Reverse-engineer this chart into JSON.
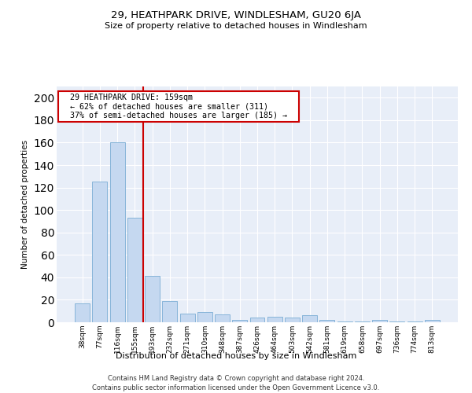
{
  "title": "29, HEATHPARK DRIVE, WINDLESHAM, GU20 6JA",
  "subtitle": "Size of property relative to detached houses in Windlesham",
  "xlabel": "Distribution of detached houses by size in Windlesham",
  "ylabel": "Number of detached properties",
  "categories": [
    "38sqm",
    "77sqm",
    "116sqm",
    "155sqm",
    "193sqm",
    "232sqm",
    "271sqm",
    "310sqm",
    "348sqm",
    "387sqm",
    "426sqm",
    "464sqm",
    "503sqm",
    "542sqm",
    "581sqm",
    "619sqm",
    "658sqm",
    "697sqm",
    "736sqm",
    "774sqm",
    "813sqm"
  ],
  "values": [
    17,
    125,
    160,
    93,
    41,
    19,
    8,
    9,
    7,
    2,
    4,
    5,
    4,
    6,
    2,
    1,
    1,
    2,
    1,
    1,
    2
  ],
  "bar_color": "#c5d8f0",
  "bar_edge_color": "#7aadd4",
  "red_line_x": 3.5,
  "red_line_color": "#cc0000",
  "annotation_text_line1": "29 HEATHPARK DRIVE: 159sqm",
  "annotation_text_line2": "← 62% of detached houses are smaller (311)",
  "annotation_text_line3": "37% of semi-detached houses are larger (185) →",
  "annotation_box_color": "#cc0000",
  "ylim": [
    0,
    210
  ],
  "yticks": [
    0,
    20,
    40,
    60,
    80,
    100,
    120,
    140,
    160,
    180,
    200
  ],
  "background_color": "#e8eef8",
  "grid_color": "#ffffff",
  "footer_line1": "Contains HM Land Registry data © Crown copyright and database right 2024.",
  "footer_line2": "Contains public sector information licensed under the Open Government Licence v3.0."
}
